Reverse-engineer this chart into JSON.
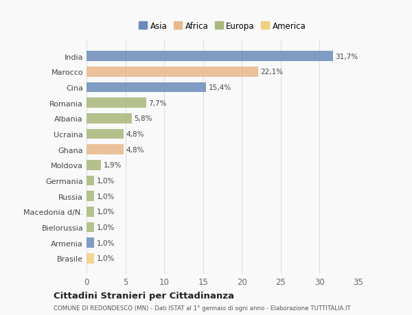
{
  "countries": [
    "India",
    "Marocco",
    "Cina",
    "Romania",
    "Albania",
    "Ucraina",
    "Ghana",
    "Moldova",
    "Germania",
    "Russia",
    "Macedonia d/N.",
    "Bielorussia",
    "Armenia",
    "Brasile"
  ],
  "values": [
    31.7,
    22.1,
    15.4,
    7.7,
    5.8,
    4.8,
    4.8,
    1.9,
    1.0,
    1.0,
    1.0,
    1.0,
    1.0,
    1.0
  ],
  "labels": [
    "31,7%",
    "22,1%",
    "15,4%",
    "7,7%",
    "5,8%",
    "4,8%",
    "4,8%",
    "1,9%",
    "1,0%",
    "1,0%",
    "1,0%",
    "1,0%",
    "1,0%",
    "1,0%"
  ],
  "colors": [
    "#6b8cba",
    "#e8b88a",
    "#6b8cba",
    "#a8b87a",
    "#a8b87a",
    "#a8b87a",
    "#e8b88a",
    "#a8b87a",
    "#a8b87a",
    "#a8b87a",
    "#a8b87a",
    "#a8b87a",
    "#6b8cba",
    "#f0d080"
  ],
  "legend_labels": [
    "Asia",
    "Africa",
    "Europa",
    "America"
  ],
  "legend_colors": [
    "#6b8cba",
    "#e8b88a",
    "#a8b87a",
    "#f0d080"
  ],
  "title": "Cittadini Stranieri per Cittadinanza",
  "subtitle": "COMUNE DI REDONDESCO (MN) - Dati ISTAT al 1° gennaio di ogni anno - Elaborazione TUTTITALIA.IT",
  "xlim": [
    0,
    35
  ],
  "xticks": [
    0,
    5,
    10,
    15,
    20,
    25,
    30,
    35
  ],
  "background_color": "#f9f9f9",
  "grid_color": "#dddddd",
  "bar_height": 0.65
}
